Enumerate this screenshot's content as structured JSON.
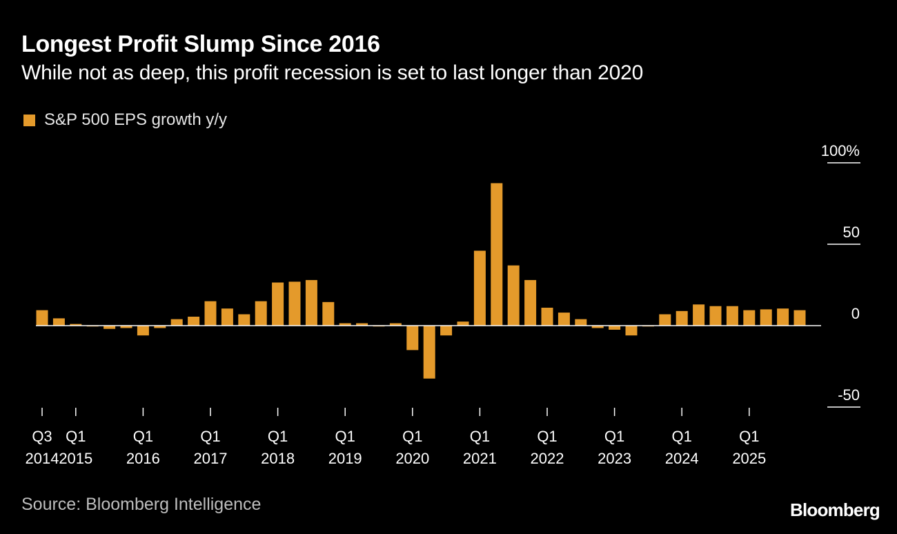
{
  "header": {
    "title": "Longest Profit Slump Since 2016",
    "subtitle": "While not as deep, this profit recession is set to last longer than 2020"
  },
  "legend": {
    "label": "S&P 500 EPS growth y/y"
  },
  "footer": {
    "source": "Source: Bloomberg Intelligence",
    "brand": "Bloomberg"
  },
  "colors": {
    "bar": "#e49a2b",
    "background": "#000000",
    "axis_text": "#ffffff",
    "baseline": "#ffffff"
  },
  "chart_data": {
    "type": "bar",
    "title": "Longest Profit Slump Since 2016",
    "subtitle": "While not as deep, this profit recession is set to last longer than 2020",
    "xlabel": "",
    "ylabel": "",
    "ylim": [
      -50,
      100
    ],
    "y_ticks": [
      {
        "value": 100,
        "label": "100%"
      },
      {
        "value": 50,
        "label": "50"
      },
      {
        "value": 0,
        "label": "0"
      },
      {
        "value": -50,
        "label": "-50"
      }
    ],
    "grid": false,
    "legend_position": "top-left",
    "categories": [
      "Q3 2014",
      "Q4 2014",
      "Q1 2015",
      "Q2 2015",
      "Q3 2015",
      "Q4 2015",
      "Q1 2016",
      "Q2 2016",
      "Q3 2016",
      "Q4 2016",
      "Q1 2017",
      "Q2 2017",
      "Q3 2017",
      "Q4 2017",
      "Q1 2018",
      "Q2 2018",
      "Q3 2018",
      "Q4 2018",
      "Q1 2019",
      "Q2 2019",
      "Q3 2019",
      "Q4 2019",
      "Q1 2020",
      "Q2 2020",
      "Q3 2020",
      "Q4 2020",
      "Q1 2021",
      "Q2 2021",
      "Q3 2021",
      "Q4 2021",
      "Q1 2022",
      "Q2 2022",
      "Q3 2022",
      "Q4 2022",
      "Q1 2023",
      "Q2 2023",
      "Q3 2023",
      "Q4 2023",
      "Q1 2024",
      "Q2 2024",
      "Q3 2024",
      "Q4 2024",
      "Q1 2025",
      "Q2 2025",
      "Q3 2025",
      "Q4 2025"
    ],
    "series": [
      {
        "name": "S&P 500 EPS growth y/y",
        "values": [
          9.5,
          4.5,
          1,
          -0.5,
          -2,
          -1.5,
          -6,
          -1.5,
          4,
          5.5,
          15,
          10.5,
          7,
          15,
          26.5,
          27,
          28,
          14.5,
          1.5,
          1.5,
          -0.5,
          1.5,
          -15,
          -32.5,
          -6,
          2.5,
          46,
          87.5,
          37,
          28,
          11,
          8,
          4,
          -1.5,
          -2.5,
          -6,
          -0.5,
          7,
          9,
          13,
          12,
          12,
          9.5,
          10,
          10.5,
          9.5
        ]
      }
    ],
    "x_tick_labels": [
      {
        "index": 0,
        "top": "Q3",
        "bottom": "2014"
      },
      {
        "index": 2,
        "top": "Q1",
        "bottom": "2015"
      },
      {
        "index": 6,
        "top": "Q1",
        "bottom": "2016"
      },
      {
        "index": 10,
        "top": "Q1",
        "bottom": "2017"
      },
      {
        "index": 14,
        "top": "Q1",
        "bottom": "2018"
      },
      {
        "index": 18,
        "top": "Q1",
        "bottom": "2019"
      },
      {
        "index": 22,
        "top": "Q1",
        "bottom": "2020"
      },
      {
        "index": 26,
        "top": "Q1",
        "bottom": "2021"
      },
      {
        "index": 30,
        "top": "Q1",
        "bottom": "2022"
      },
      {
        "index": 34,
        "top": "Q1",
        "bottom": "2023"
      },
      {
        "index": 38,
        "top": "Q1",
        "bottom": "2024"
      },
      {
        "index": 42,
        "top": "Q1",
        "bottom": "2025"
      }
    ]
  }
}
